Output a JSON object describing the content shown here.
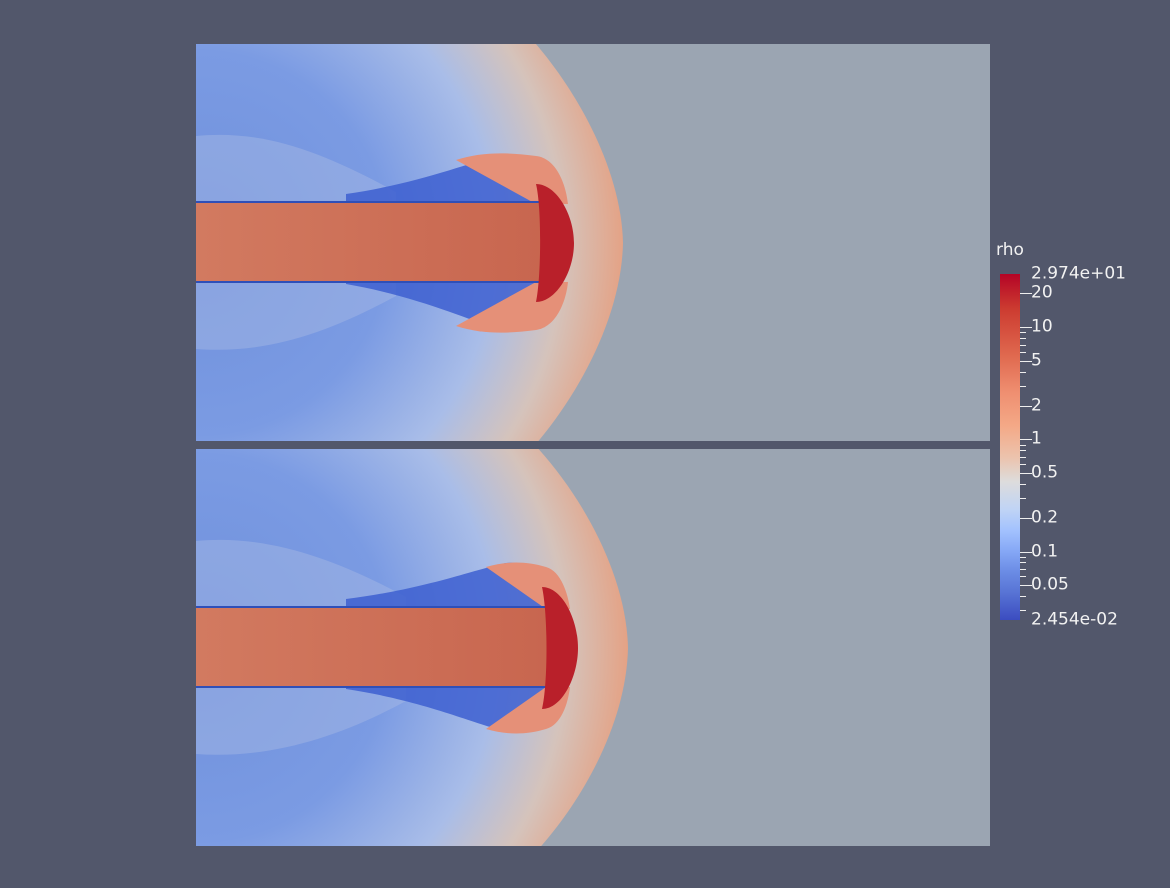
{
  "colorbar": {
    "title": "rho",
    "max_label": "2.974e+01",
    "min_label": "2.454e-02",
    "range": [
      0.02454,
      29.74
    ],
    "scale": "log",
    "colormap": "cool-to-warm",
    "labels": [
      {
        "text": "2.974e+01",
        "value": 29.74
      },
      {
        "text": "20",
        "value": 20
      },
      {
        "text": "10",
        "value": 10
      },
      {
        "text": "5",
        "value": 5
      },
      {
        "text": "2",
        "value": 2
      },
      {
        "text": "1",
        "value": 1
      },
      {
        "text": "0.5",
        "value": 0.5
      },
      {
        "text": "0.2",
        "value": 0.2
      },
      {
        "text": "0.1",
        "value": 0.1
      },
      {
        "text": "0.05",
        "value": 0.05
      },
      {
        "text": "2.454e-02",
        "value": 0.02454
      }
    ]
  },
  "colors": {
    "background": "#52576b",
    "ambient": "#9ba5b2",
    "jet": "#cf7258",
    "jet_head": "#b9202a",
    "shell": "#e4a285",
    "cavity": "#6f90dc"
  },
  "views": [
    {
      "name": "top-render"
    },
    {
      "name": "bottom-render"
    }
  ]
}
